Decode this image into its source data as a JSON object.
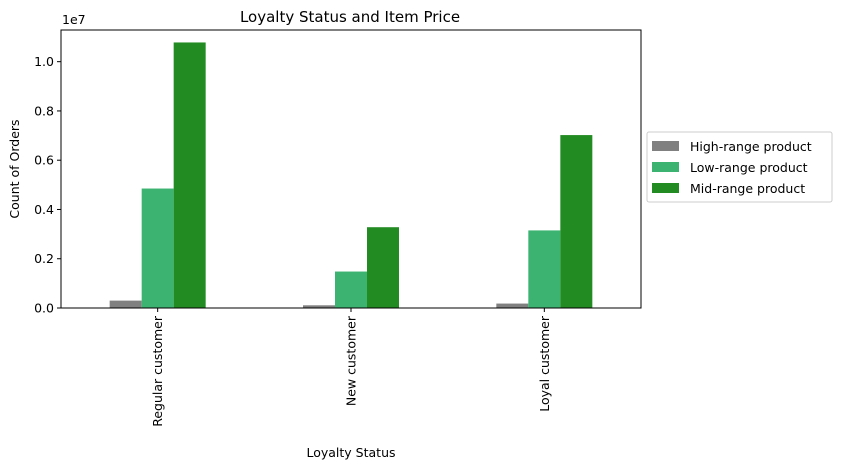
{
  "chart_data": {
    "type": "bar",
    "title": "Loyalty Status and Item Price",
    "xlabel": "Loyalty Status",
    "ylabel": "Count of Orders",
    "y_scale_label": "1e7",
    "categories": [
      "Regular customer",
      "New customer",
      "Loyal customer"
    ],
    "series": [
      {
        "name": "High-range product",
        "color": "#808080",
        "values": [
          0.03,
          0.011,
          0.018
        ]
      },
      {
        "name": "Low-range product",
        "color": "#3cb371",
        "values": [
          0.485,
          0.148,
          0.315
        ]
      },
      {
        "name": "Mid-range product",
        "color": "#228b22",
        "values": [
          1.078,
          0.328,
          0.702
        ]
      }
    ],
    "ylim": [
      0,
      1.1286
    ],
    "yticks": [
      0.0,
      0.2,
      0.4,
      0.6,
      0.8,
      1.0
    ],
    "ytick_labels": [
      "0.0",
      "0.2",
      "0.4",
      "0.6",
      "0.8",
      "1.0"
    ],
    "grid": false,
    "legend_position": "right-outside"
  }
}
